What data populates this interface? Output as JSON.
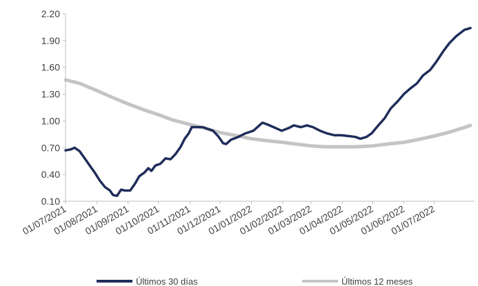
{
  "chart_data": {
    "type": "line",
    "title": "",
    "xlabel": "",
    "ylabel": "",
    "x_ticks": [
      "01/07/2021",
      "01/08/2021",
      "01/09/2021",
      "01/10/2021",
      "01/11/2021",
      "01/12/2021",
      "01/01/2022",
      "01/02/2022",
      "01/03/2022",
      "01/04/2022",
      "01/05/2022",
      "01/06/2022",
      "01/07/2022"
    ],
    "xlim": [
      "2021-07-01",
      "2022-08-10"
    ],
    "y_ticks": [
      "0.10",
      "0.40",
      "0.70",
      "1.00",
      "1.30",
      "1.60",
      "1.90",
      "2.20"
    ],
    "ylim": [
      0.1,
      2.2
    ],
    "grid": false,
    "legend_position": "bottom",
    "series": [
      {
        "name": "Últimos 30 días",
        "color": "#1f2d5a",
        "points": [
          [
            "2021-07-01",
            0.67
          ],
          [
            "2021-07-06",
            0.68
          ],
          [
            "2021-07-10",
            0.7
          ],
          [
            "2021-07-15",
            0.66
          ],
          [
            "2021-07-20",
            0.58
          ],
          [
            "2021-07-25",
            0.5
          ],
          [
            "2021-07-30",
            0.42
          ],
          [
            "2021-08-04",
            0.33
          ],
          [
            "2021-08-09",
            0.26
          ],
          [
            "2021-08-14",
            0.22
          ],
          [
            "2021-08-17",
            0.17
          ],
          [
            "2021-08-21",
            0.16
          ],
          [
            "2021-08-25",
            0.23
          ],
          [
            "2021-08-29",
            0.22
          ],
          [
            "2021-09-03",
            0.22
          ],
          [
            "2021-09-08",
            0.3
          ],
          [
            "2021-09-12",
            0.38
          ],
          [
            "2021-09-17",
            0.42
          ],
          [
            "2021-09-21",
            0.47
          ],
          [
            "2021-09-24",
            0.44
          ],
          [
            "2021-09-28",
            0.5
          ],
          [
            "2021-10-03",
            0.52
          ],
          [
            "2021-10-08",
            0.58
          ],
          [
            "2021-10-13",
            0.57
          ],
          [
            "2021-10-18",
            0.63
          ],
          [
            "2021-10-23",
            0.71
          ],
          [
            "2021-10-27",
            0.8
          ],
          [
            "2021-10-31",
            0.86
          ],
          [
            "2021-11-03",
            0.93
          ],
          [
            "2021-11-08",
            0.93
          ],
          [
            "2021-11-14",
            0.93
          ],
          [
            "2021-11-19",
            0.91
          ],
          [
            "2021-11-24",
            0.89
          ],
          [
            "2021-11-29",
            0.83
          ],
          [
            "2021-12-04",
            0.75
          ],
          [
            "2021-12-07",
            0.74
          ],
          [
            "2021-12-12",
            0.79
          ],
          [
            "2021-12-19",
            0.82
          ],
          [
            "2021-12-26",
            0.86
          ],
          [
            "2022-01-03",
            0.89
          ],
          [
            "2022-01-08",
            0.94
          ],
          [
            "2022-01-12",
            0.98
          ],
          [
            "2022-01-17",
            0.96
          ],
          [
            "2022-01-23",
            0.93
          ],
          [
            "2022-01-31",
            0.89
          ],
          [
            "2022-02-07",
            0.92
          ],
          [
            "2022-02-12",
            0.95
          ],
          [
            "2022-02-19",
            0.93
          ],
          [
            "2022-02-25",
            0.95
          ],
          [
            "2022-03-03",
            0.93
          ],
          [
            "2022-03-10",
            0.89
          ],
          [
            "2022-03-17",
            0.86
          ],
          [
            "2022-03-24",
            0.84
          ],
          [
            "2022-03-31",
            0.84
          ],
          [
            "2022-04-07",
            0.83
          ],
          [
            "2022-04-14",
            0.82
          ],
          [
            "2022-04-19",
            0.8
          ],
          [
            "2022-04-25",
            0.82
          ],
          [
            "2022-04-30",
            0.86
          ],
          [
            "2022-05-06",
            0.94
          ],
          [
            "2022-05-13",
            1.03
          ],
          [
            "2022-05-19",
            1.14
          ],
          [
            "2022-05-26",
            1.22
          ],
          [
            "2022-06-01",
            1.3
          ],
          [
            "2022-06-07",
            1.36
          ],
          [
            "2022-06-14",
            1.42
          ],
          [
            "2022-06-20",
            1.51
          ],
          [
            "2022-06-27",
            1.57
          ],
          [
            "2022-07-03",
            1.66
          ],
          [
            "2022-07-10",
            1.78
          ],
          [
            "2022-07-16",
            1.87
          ],
          [
            "2022-07-23",
            1.95
          ],
          [
            "2022-07-31",
            2.02
          ],
          [
            "2022-08-06",
            2.04
          ]
        ]
      },
      {
        "name": "Últimos 12 meses",
        "color": "#c4c4c4",
        "points": [
          [
            "2021-07-01",
            1.46
          ],
          [
            "2021-07-15",
            1.42
          ],
          [
            "2021-08-01",
            1.34
          ],
          [
            "2021-08-15",
            1.27
          ],
          [
            "2021-09-01",
            1.19
          ],
          [
            "2021-09-15",
            1.13
          ],
          [
            "2021-10-01",
            1.07
          ],
          [
            "2021-10-15",
            1.01
          ],
          [
            "2021-11-01",
            0.96
          ],
          [
            "2021-11-15",
            0.92
          ],
          [
            "2021-12-01",
            0.87
          ],
          [
            "2021-12-15",
            0.84
          ],
          [
            "2022-01-01",
            0.8
          ],
          [
            "2022-01-15",
            0.78
          ],
          [
            "2022-02-01",
            0.76
          ],
          [
            "2022-02-15",
            0.74
          ],
          [
            "2022-03-01",
            0.72
          ],
          [
            "2022-03-15",
            0.71
          ],
          [
            "2022-04-01",
            0.71
          ],
          [
            "2022-04-15",
            0.71
          ],
          [
            "2022-05-01",
            0.72
          ],
          [
            "2022-05-15",
            0.74
          ],
          [
            "2022-06-01",
            0.76
          ],
          [
            "2022-06-15",
            0.79
          ],
          [
            "2022-07-01",
            0.83
          ],
          [
            "2022-07-15",
            0.87
          ],
          [
            "2022-08-01",
            0.93
          ],
          [
            "2022-08-06",
            0.95
          ]
        ]
      }
    ]
  }
}
